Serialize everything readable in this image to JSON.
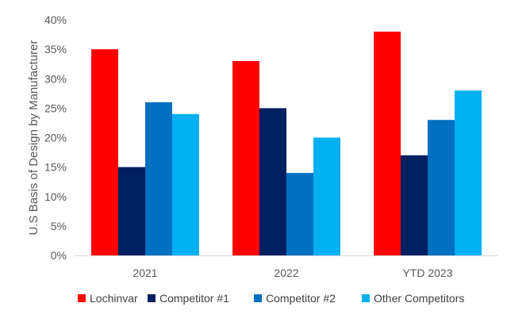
{
  "chart_data": {
    "type": "bar",
    "title": "",
    "xlabel": "",
    "ylabel": "U.S Basis of Design by Manufacturer",
    "categories": [
      "2021",
      "2022",
      "YTD 2023"
    ],
    "series": [
      {
        "name": "Lochinvar",
        "color": "#ff0000",
        "values": [
          35,
          33,
          38
        ]
      },
      {
        "name": "Competitor #1",
        "color": "#002060",
        "values": [
          15,
          25,
          17
        ]
      },
      {
        "name": "Competitor #2",
        "color": "#0070c0",
        "values": [
          26,
          14,
          23
        ]
      },
      {
        "name": "Other Competitors",
        "color": "#00b0f0",
        "values": [
          24,
          20,
          28
        ]
      }
    ],
    "ylim": [
      0,
      40
    ],
    "yticks": [
      0,
      5,
      10,
      15,
      20,
      25,
      30,
      35,
      40
    ],
    "ytick_labels": [
      "0%",
      "5%",
      "10%",
      "15%",
      "20%",
      "25%",
      "30%",
      "35%",
      "40%"
    ],
    "value_format": "percent",
    "grid": false,
    "legend_position": "bottom"
  }
}
